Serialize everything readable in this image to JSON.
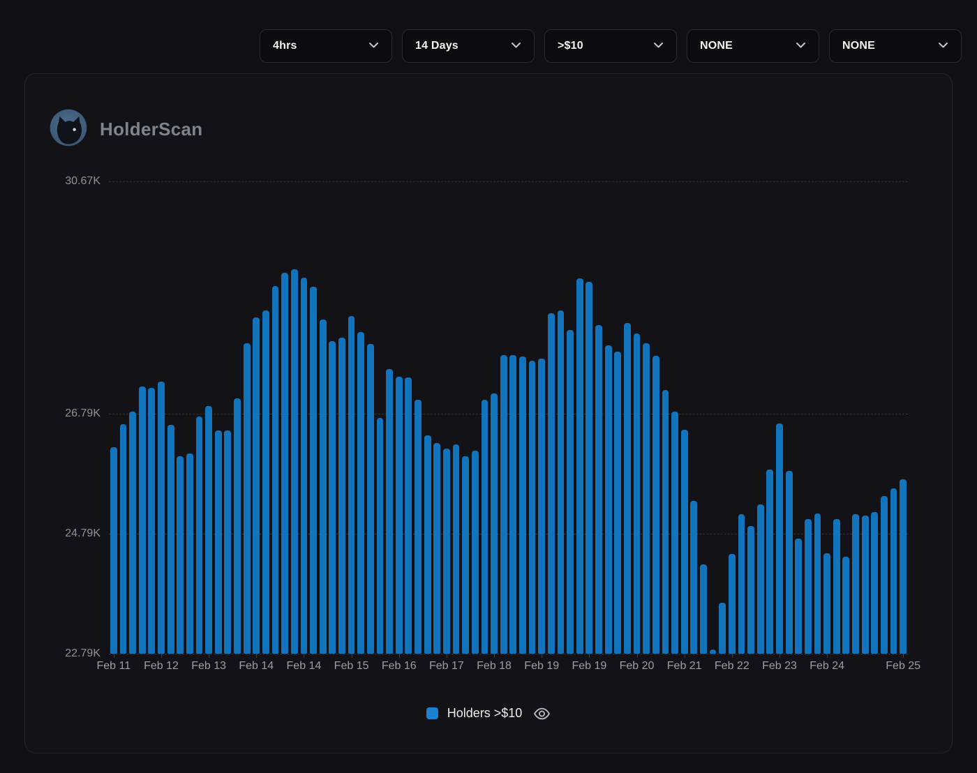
{
  "brand": {
    "name": "HolderScan",
    "logo_icon": "cat-logo-icon"
  },
  "filters": [
    {
      "name": "timeframe",
      "value": "4hrs",
      "icon": "chevron-down-icon"
    },
    {
      "name": "period",
      "value": "14 Days",
      "icon": "chevron-down-icon"
    },
    {
      "name": "threshold",
      "value": ">$10",
      "icon": "chevron-down-icon"
    },
    {
      "name": "metric-a",
      "value": "NONE",
      "icon": "chevron-down-icon"
    },
    {
      "name": "metric-b",
      "value": "NONE",
      "icon": "chevron-down-icon"
    }
  ],
  "legend": {
    "label": "Holders >$10",
    "visibility_icon": "eye-icon"
  },
  "colors": {
    "bar": "#1274bc",
    "legend_swatch": "#1a82cf",
    "page_bg": "#111114",
    "card_bg": "#131317",
    "muted_text": "#8f929a"
  },
  "chart_data": {
    "type": "bar",
    "series_name": "Holders >$10",
    "interval_per_bar": "4hrs",
    "unit": "K holders",
    "y_min": 22.79,
    "y_max": 30.67,
    "grid": "dashed-horizontal",
    "legend_position": "bottom-center",
    "y_ticks": [
      "30.67K",
      "26.79K",
      "24.79K",
      "22.79K"
    ],
    "y_tick_values": [
      30.67,
      26.79,
      24.79,
      22.79
    ],
    "x_tick_labels": [
      "Feb 11",
      "Feb 12",
      "Feb 13",
      "Feb 14",
      "Feb 14",
      "Feb 15",
      "Feb 16",
      "Feb 17",
      "Feb 18",
      "Feb 19",
      "Feb 19",
      "Feb 20",
      "Feb 21",
      "Feb 22",
      "Feb 23",
      "Feb 24",
      "Feb 25"
    ],
    "x_tick_bar_indices": [
      0,
      5,
      10,
      15,
      20,
      25,
      30,
      35,
      40,
      45,
      50,
      55,
      60,
      65,
      70,
      75,
      83
    ],
    "values": [
      26.23,
      26.62,
      26.83,
      27.25,
      27.22,
      27.33,
      26.61,
      26.09,
      26.13,
      26.75,
      26.92,
      26.51,
      26.52,
      27.05,
      27.97,
      28.4,
      28.52,
      28.93,
      29.15,
      29.2,
      29.06,
      28.91,
      28.36,
      28.0,
      28.06,
      28.42,
      28.16,
      27.96,
      26.73,
      27.54,
      27.41,
      27.4,
      27.03,
      26.43,
      26.3,
      26.21,
      26.28,
      26.09,
      26.18,
      27.03,
      27.13,
      27.77,
      27.77,
      27.75,
      27.68,
      27.71,
      28.47,
      28.52,
      28.19,
      29.05,
      28.99,
      28.27,
      27.93,
      27.83,
      28.31,
      28.13,
      27.97,
      27.76,
      27.19,
      26.83,
      26.53,
      25.34,
      24.28,
      22.86,
      23.64,
      24.45,
      25.12,
      24.92,
      25.28,
      25.86,
      26.63,
      25.84,
      24.71,
      25.04,
      25.13,
      24.47,
      25.04,
      24.41,
      25.12,
      25.09,
      25.15,
      25.42,
      25.55,
      25.7
    ]
  }
}
